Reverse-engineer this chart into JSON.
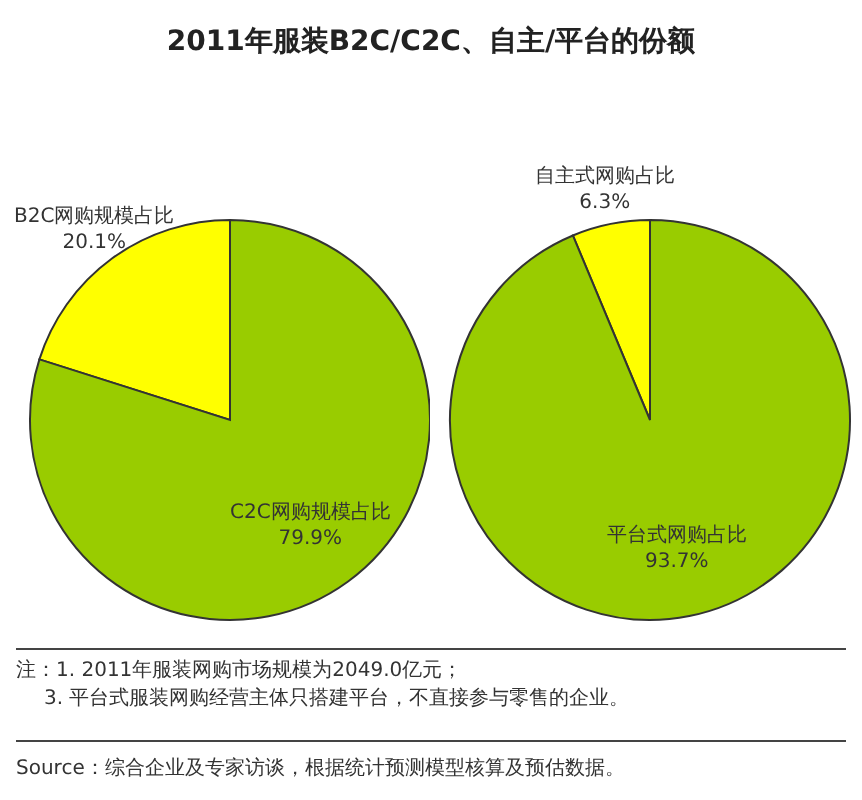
{
  "chart_data": [
    {
      "type": "pie",
      "title": "2011年服装B2C/C2C、自主/平台的份额",
      "categories": [
        "B2C网购规模占比",
        "C2C网购规模占比"
      ],
      "values": [
        20.1,
        79.9
      ],
      "value_labels": [
        "20.1%",
        "79.9%"
      ],
      "colors": [
        "#ffff00",
        "#99cc00"
      ],
      "legend": false
    },
    {
      "type": "pie",
      "categories": [
        "自主式网购占比",
        "平台式网购占比"
      ],
      "values": [
        6.3,
        93.7
      ],
      "value_labels": [
        "6.3%",
        "93.7%"
      ],
      "colors": [
        "#ffff00",
        "#99cc00"
      ],
      "legend": false,
      "annotations": [
        "注：1. 2011年服装网购市场规模为2049.0亿元；",
        "3. 平台式服装网购经营主体只搭建平台，不直接参与零售的企业。",
        "Source：综合企业及专家访谈，根据统计预测模型核算及预估数据。"
      ]
    }
  ]
}
